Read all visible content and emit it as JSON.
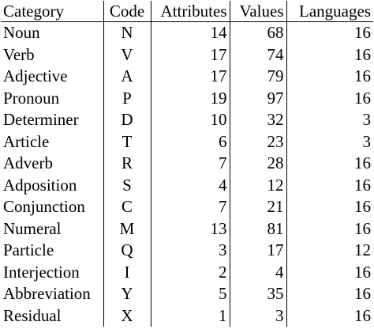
{
  "table": {
    "headers": {
      "category": "Category",
      "code": "Code",
      "attributes": "Attributes",
      "values": "Values",
      "languages": "Languages"
    },
    "rows": [
      {
        "category": "Noun",
        "code": "N",
        "attributes": "14",
        "values": "68",
        "languages": "16"
      },
      {
        "category": "Verb",
        "code": "V",
        "attributes": "17",
        "values": "74",
        "languages": "16"
      },
      {
        "category": "Adjective",
        "code": "A",
        "attributes": "17",
        "values": "79",
        "languages": "16"
      },
      {
        "category": "Pronoun",
        "code": "P",
        "attributes": "19",
        "values": "97",
        "languages": "16"
      },
      {
        "category": "Determiner",
        "code": "D",
        "attributes": "10",
        "values": "32",
        "languages": "3"
      },
      {
        "category": "Article",
        "code": "T",
        "attributes": "6",
        "values": "23",
        "languages": "3"
      },
      {
        "category": "Adverb",
        "code": "R",
        "attributes": "7",
        "values": "28",
        "languages": "16"
      },
      {
        "category": "Adposition",
        "code": "S",
        "attributes": "4",
        "values": "12",
        "languages": "16"
      },
      {
        "category": "Conjunction",
        "code": "C",
        "attributes": "7",
        "values": "21",
        "languages": "16"
      },
      {
        "category": "Numeral",
        "code": "M",
        "attributes": "13",
        "values": "81",
        "languages": "16"
      },
      {
        "category": "Particle",
        "code": "Q",
        "attributes": "3",
        "values": "17",
        "languages": "12"
      },
      {
        "category": "Interjection",
        "code": "I",
        "attributes": "2",
        "values": "4",
        "languages": "16"
      },
      {
        "category": "Abbreviation",
        "code": "Y",
        "attributes": "5",
        "values": "35",
        "languages": "16"
      },
      {
        "category": "Residual",
        "code": "X",
        "attributes": "1",
        "values": "3",
        "languages": "16"
      }
    ]
  }
}
